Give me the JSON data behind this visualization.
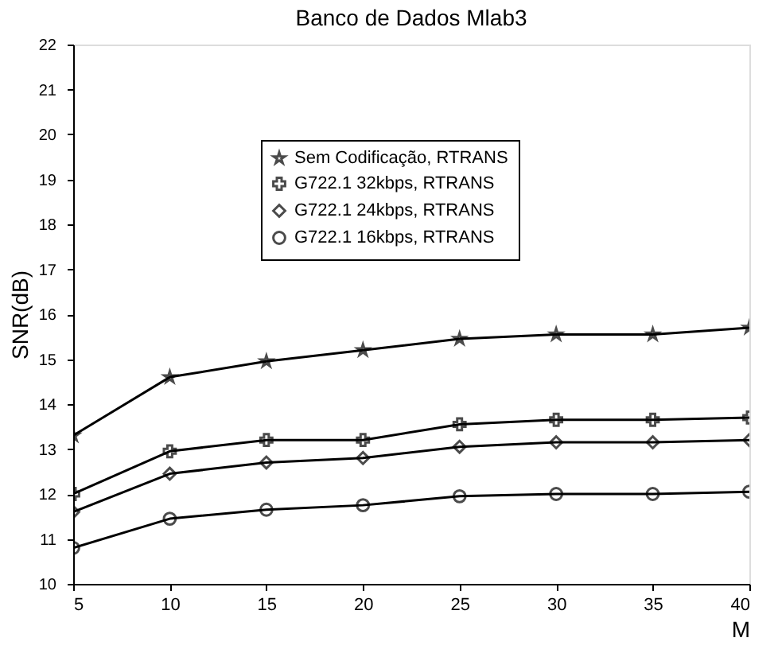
{
  "chart_data": {
    "type": "line",
    "title": "Banco de Dados Mlab3",
    "xlabel": "M",
    "ylabel": "SNR(dB)",
    "x": [
      5,
      10,
      15,
      20,
      25,
      30,
      35,
      40
    ],
    "series": [
      {
        "name": "Sem Codificação, RTRANS",
        "color": "#000000",
        "marker": "star",
        "values": [
          13.3,
          14.6,
          14.95,
          15.2,
          15.45,
          15.55,
          15.55,
          15.7
        ]
      },
      {
        "name": "G722.1 32kbps, RTRANS",
        "color": "#000000",
        "marker": "cross",
        "values": [
          12.0,
          12.95,
          13.2,
          13.2,
          13.55,
          13.65,
          13.65,
          13.7
        ]
      },
      {
        "name": "G722.1 24kbps, RTRANS",
        "color": "#000000",
        "marker": "diamond",
        "values": [
          11.6,
          12.45,
          12.7,
          12.8,
          13.05,
          13.15,
          13.15,
          13.2
        ]
      },
      {
        "name": "G722.1 16kbps, RTRANS",
        "color": "#000000",
        "marker": "circle",
        "values": [
          10.8,
          11.45,
          11.65,
          11.75,
          11.95,
          12.0,
          12.0,
          12.05
        ]
      }
    ],
    "xlim": [
      5,
      40
    ],
    "xticks": [
      5,
      10,
      15,
      20,
      25,
      30,
      35,
      40
    ],
    "ylim": [
      10,
      22
    ],
    "yticks": [
      10,
      11,
      12,
      13,
      14,
      15,
      16,
      17,
      18,
      19,
      20,
      21,
      22
    ],
    "grid": false,
    "legend": "top",
    "line_style": "solid"
  }
}
